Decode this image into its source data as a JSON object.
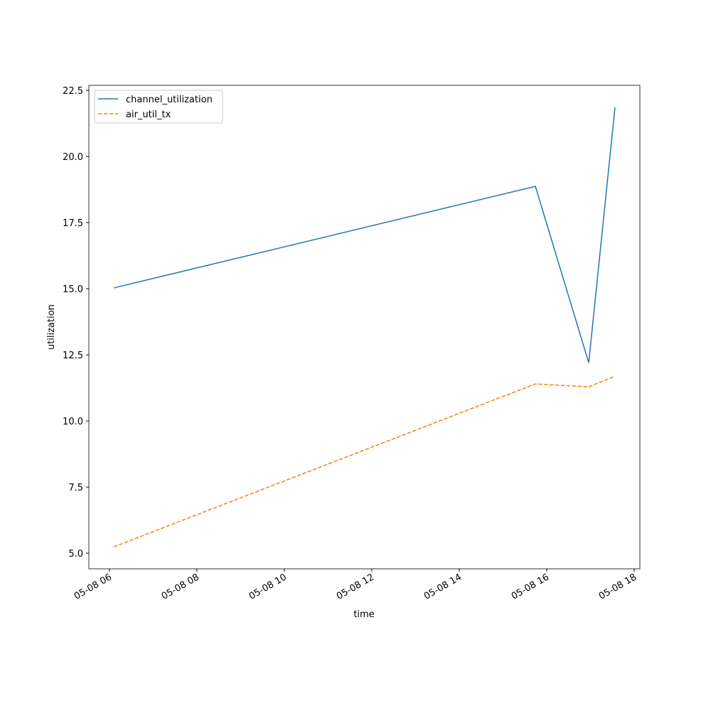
{
  "chart_data": {
    "type": "line",
    "x_label": "time",
    "y_label": "utilization",
    "x": [
      6.1,
      15.74,
      16.96,
      17.56
    ],
    "series": [
      {
        "name": "channel_utilization",
        "color": "#1f77b4",
        "linestyle": "solid",
        "values": [
          15.03,
          18.87,
          12.2,
          21.85
        ]
      },
      {
        "name": "air_util_tx",
        "color": "#ff7f0e",
        "linestyle": "dashed",
        "values": [
          5.24,
          11.4,
          11.29,
          11.69
        ]
      }
    ],
    "xlim": [
      5.53,
      18.13
    ],
    "xticks": [
      {
        "value": 6,
        "label": "05-08 06"
      },
      {
        "value": 8,
        "label": "05-08 08"
      },
      {
        "value": 10,
        "label": "05-08 10"
      },
      {
        "value": 12,
        "label": "05-08 12"
      },
      {
        "value": 14,
        "label": "05-08 14"
      },
      {
        "value": 16,
        "label": "05-08 16"
      },
      {
        "value": 18,
        "label": "05-08 18"
      }
    ],
    "ylim": [
      4.41,
      22.69
    ],
    "yticks": [
      {
        "value": 5,
        "label": "5.0"
      },
      7.5,
      {
        "value": 10,
        "label": "10.0"
      },
      12.5,
      {
        "value": 15,
        "label": "15.0"
      },
      17.5,
      {
        "value": 20,
        "label": "20.0"
      },
      22.5
    ],
    "grid": false,
    "legend": "upper left"
  }
}
